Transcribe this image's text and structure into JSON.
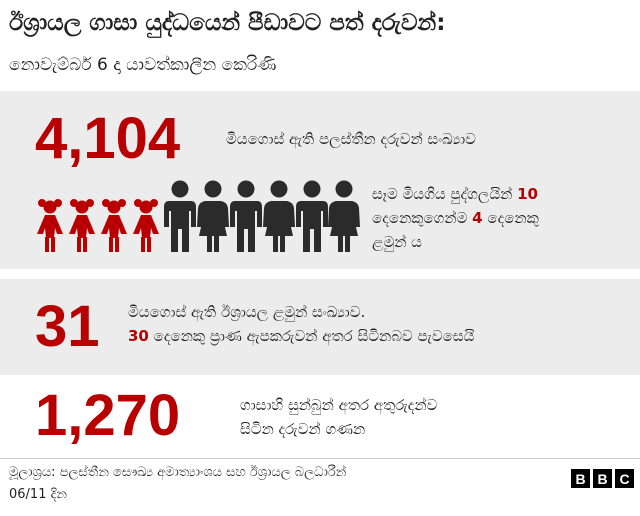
{
  "header": {
    "title": "ඊශ්‍රායල ගාසා යුද්ධයෙන් පීඩාවට පත් දරුවන්:",
    "subtitle": "නොවැම්බර් 6 දා යාවත්කාලීන කෙරිණි"
  },
  "stat1": {
    "number": "4,104",
    "label": "මියගොස් ඇති පලස්තීන දරුවන් සංඛ්‍යාව",
    "detail_a": "සෑම මියගිය පුද්ගලයින්",
    "detail_num_a": "10",
    "detail_b": "දෙනෙකුගෙන්ම",
    "detail_num_b": "4",
    "detail_c": "දෙනෙකු",
    "detail_d": "ළමුන් ය"
  },
  "stat2": {
    "number": "31",
    "line1": "මියගොස් ඇති ඊශ්‍රායල ළමුන් සංඛ්‍යාව.",
    "line2_num": "30",
    "line2_text": "දෙනෙකු ප්‍රාණ ඇපකරුවන් අතර සිටිනබව පැවසෙයි"
  },
  "stat3": {
    "number": "1,270",
    "line1": "ගාසාහි සුන්බුන් අතර අතුරුදන්ව",
    "line2": "සිටින දරුවන් ගණන"
  },
  "people_graphic": {
    "total_people": 10,
    "children": 4,
    "child_icon": "girl-figure-icon",
    "adult_icon": "adult-figure-icon"
  },
  "footer": {
    "source": "මූලාශ්‍රය: පලස්තීන සෞඛ්‍ය අමාත්‍යාංශය සහ ඊශ්‍රායල බලධාරීන්",
    "date": "06/11 දින",
    "logo_letters": [
      "B",
      "B",
      "C"
    ]
  },
  "colors": {
    "accent_red": "#b80000",
    "dark_figure": "#2b2b2b",
    "panel_bg": "#ececec",
    "text": "#222222"
  }
}
